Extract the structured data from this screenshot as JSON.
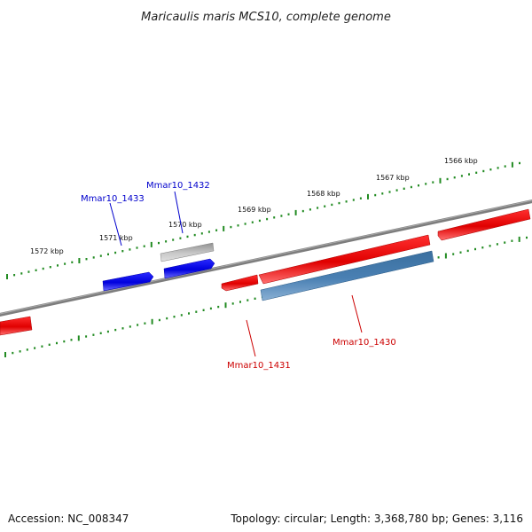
{
  "title": "Maricaulis maris MCS10, complete genome",
  "accession": "Accession: NC_008347",
  "summary": "Topology: circular; Length: 3,368,780 bp; Genes: 3,116",
  "colors": {
    "forward_gene": "#ff0000",
    "reverse_gene": "#0000ee",
    "selected_gene": "#4a7fb0",
    "pseudo_gene": "#b0b0b0",
    "backbone": "#808080",
    "tick": "#228b22",
    "label_forward": "#0000cc",
    "label_reverse": "#cc0000"
  },
  "ticks": [
    {
      "label": "1572 kbp"
    },
    {
      "label": "1571 kbp"
    },
    {
      "label": "1570 kbp"
    },
    {
      "label": "1569 kbp"
    },
    {
      "label": "1568 kbp"
    },
    {
      "label": "1567 kbp"
    },
    {
      "label": "1566 kbp"
    }
  ],
  "gene_labels": [
    {
      "label": "Mmar10_1433"
    },
    {
      "label": "Mmar10_1432"
    },
    {
      "label": "Mmar10_1431"
    },
    {
      "label": "Mmar10_1430"
    }
  ]
}
